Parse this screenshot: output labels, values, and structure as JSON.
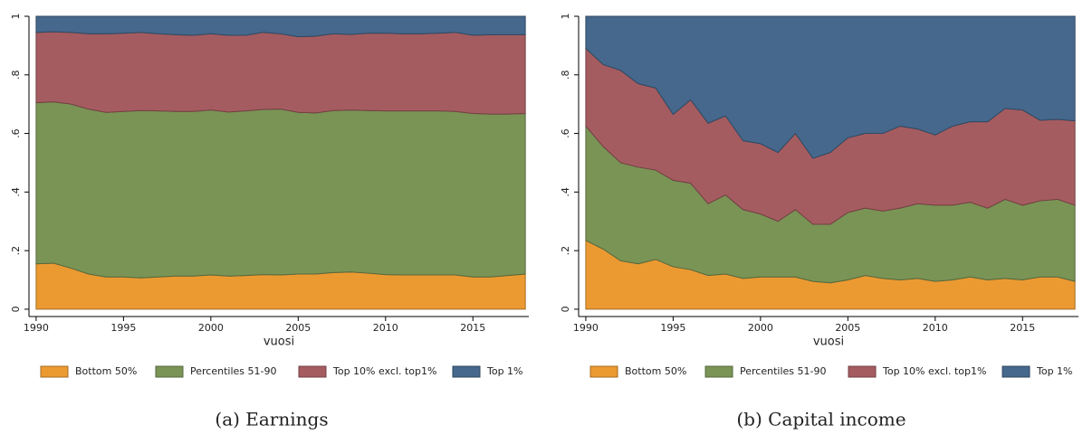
{
  "chart_data": [
    {
      "type": "area",
      "stacked": true,
      "caption": "(a) Earnings",
      "x_label": "vuosi",
      "x": [
        1990,
        1991,
        1992,
        1993,
        1994,
        1995,
        1996,
        1997,
        1998,
        1999,
        2000,
        2001,
        2002,
        2003,
        2004,
        2005,
        2006,
        2007,
        2008,
        2009,
        2010,
        2011,
        2012,
        2013,
        2014,
        2015,
        2016,
        2017,
        2018
      ],
      "series": [
        {
          "name": "Bottom 50%",
          "color": "#eb9a32",
          "values": [
            0.155,
            0.157,
            0.14,
            0.12,
            0.11,
            0.11,
            0.107,
            0.11,
            0.113,
            0.113,
            0.117,
            0.113,
            0.115,
            0.118,
            0.117,
            0.12,
            0.12,
            0.125,
            0.127,
            0.123,
            0.118,
            0.117,
            0.117,
            0.117,
            0.117,
            0.11,
            0.11,
            0.115,
            0.12
          ]
        },
        {
          "name": "Percentiles 51-90",
          "color": "#7a9456",
          "values": [
            0.55,
            0.551,
            0.56,
            0.563,
            0.562,
            0.565,
            0.571,
            0.567,
            0.562,
            0.562,
            0.563,
            0.56,
            0.562,
            0.564,
            0.566,
            0.552,
            0.55,
            0.553,
            0.553,
            0.555,
            0.559,
            0.56,
            0.56,
            0.56,
            0.558,
            0.558,
            0.556,
            0.551,
            0.548
          ]
        },
        {
          "name": "Top 10% excl. top1%",
          "color": "#a55c60",
          "values": [
            0.24,
            0.239,
            0.245,
            0.257,
            0.268,
            0.267,
            0.267,
            0.263,
            0.262,
            0.26,
            0.26,
            0.262,
            0.258,
            0.263,
            0.257,
            0.258,
            0.262,
            0.262,
            0.258,
            0.264,
            0.265,
            0.263,
            0.263,
            0.265,
            0.27,
            0.267,
            0.271,
            0.271,
            0.269
          ]
        },
        {
          "name": "Top 1%",
          "color": "#45688c",
          "values": [
            0.055,
            0.053,
            0.055,
            0.06,
            0.06,
            0.058,
            0.055,
            0.06,
            0.063,
            0.065,
            0.06,
            0.065,
            0.065,
            0.055,
            0.06,
            0.07,
            0.068,
            0.06,
            0.062,
            0.058,
            0.058,
            0.06,
            0.06,
            0.058,
            0.055,
            0.065,
            0.063,
            0.063,
            0.063
          ]
        }
      ],
      "xlim": [
        1989.59,
        2018.2
      ],
      "ylim": [
        -0.025,
        1
      ],
      "xticks": [
        1990,
        1995,
        2000,
        2005,
        2010,
        2015
      ],
      "yticks": [
        0,
        {
          "value": 0.2,
          "label": ".2"
        },
        {
          "value": 0.4,
          "label": ".4"
        },
        {
          "value": 0.6,
          "label": ".6"
        },
        {
          "value": 0.8,
          "label": ".8"
        },
        1
      ],
      "legend": "bottom"
    },
    {
      "type": "area",
      "stacked": true,
      "caption": "(b) Capital income",
      "x_label": "vuosi",
      "x": [
        1990,
        1991,
        1992,
        1993,
        1994,
        1995,
        1996,
        1997,
        1998,
        1999,
        2000,
        2001,
        2002,
        2003,
        2004,
        2005,
        2006,
        2007,
        2008,
        2009,
        2010,
        2011,
        2012,
        2013,
        2014,
        2015,
        2016,
        2017,
        2018
      ],
      "series": [
        {
          "name": "Bottom 50%",
          "color": "#eb9a32",
          "values": [
            0.235,
            0.205,
            0.165,
            0.155,
            0.17,
            0.145,
            0.135,
            0.115,
            0.12,
            0.105,
            0.11,
            0.11,
            0.11,
            0.095,
            0.09,
            0.1,
            0.115,
            0.105,
            0.1,
            0.105,
            0.095,
            0.1,
            0.11,
            0.1,
            0.105,
            0.1,
            0.11,
            0.11,
            0.095
          ]
        },
        {
          "name": "Percentiles 51-90",
          "color": "#7a9456",
          "values": [
            0.39,
            0.35,
            0.335,
            0.33,
            0.305,
            0.295,
            0.295,
            0.245,
            0.27,
            0.235,
            0.215,
            0.19,
            0.23,
            0.195,
            0.2,
            0.23,
            0.23,
            0.23,
            0.245,
            0.255,
            0.26,
            0.255,
            0.255,
            0.245,
            0.27,
            0.255,
            0.26,
            0.265,
            0.26
          ]
        },
        {
          "name": "Top 10% excl. top1%",
          "color": "#a55c60",
          "values": [
            0.265,
            0.28,
            0.315,
            0.285,
            0.28,
            0.225,
            0.285,
            0.275,
            0.27,
            0.235,
            0.24,
            0.235,
            0.26,
            0.225,
            0.245,
            0.255,
            0.255,
            0.265,
            0.28,
            0.255,
            0.24,
            0.27,
            0.275,
            0.295,
            0.31,
            0.325,
            0.275,
            0.273,
            0.288
          ]
        },
        {
          "name": "Top 1%",
          "color": "#45688c",
          "values": [
            0.11,
            0.165,
            0.185,
            0.23,
            0.245,
            0.335,
            0.285,
            0.365,
            0.34,
            0.425,
            0.435,
            0.465,
            0.4,
            0.485,
            0.465,
            0.415,
            0.4,
            0.4,
            0.375,
            0.385,
            0.405,
            0.375,
            0.36,
            0.36,
            0.315,
            0.32,
            0.355,
            0.352,
            0.357
          ]
        }
      ],
      "xlim": [
        1989.59,
        2018.2
      ],
      "ylim": [
        -0.025,
        1
      ],
      "xticks": [
        1990,
        1995,
        2000,
        2005,
        2010,
        2015
      ],
      "yticks": [
        0,
        {
          "value": 0.2,
          "label": ".2"
        },
        {
          "value": 0.4,
          "label": ".4"
        },
        {
          "value": 0.6,
          "label": ".6"
        },
        {
          "value": 0.8,
          "label": ".8"
        },
        1
      ],
      "legend": "bottom"
    }
  ]
}
